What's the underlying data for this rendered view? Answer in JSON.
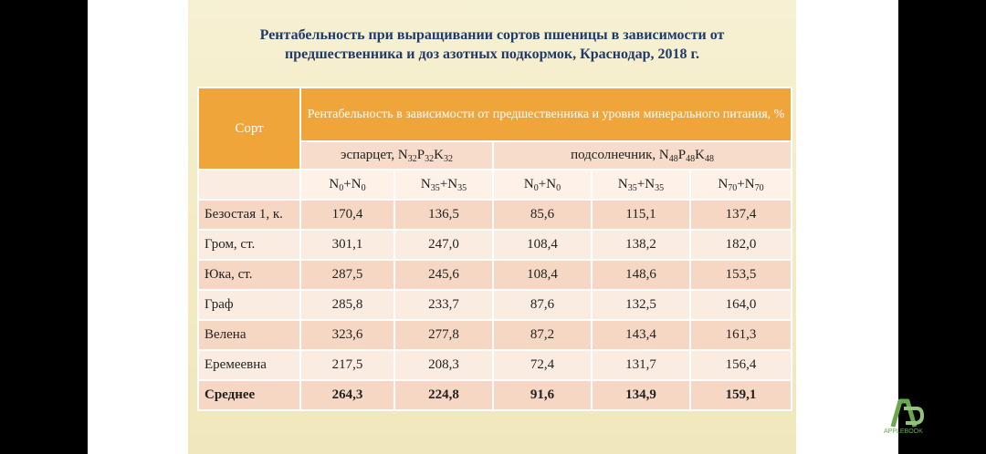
{
  "title": "Рентабельность при выращивании сортов пшеницы в зависимости от предшественника и доз азотных подкормок, Краснодар, 2018 г.",
  "table": {
    "col_sort": "Сорт",
    "col_main": "Рентабельность в зависимости от предшественника и уровня минерального питания, %",
    "groups": [
      {
        "label": "эспарцет, N32P32K32"
      },
      {
        "label": "подсолнечник, N48P48K48"
      }
    ],
    "subcols": [
      "N0+N0",
      "N35+N35",
      "N0+N0",
      "N35+N35",
      "N70+N70"
    ],
    "rows": [
      {
        "name": "Безостая 1, к.",
        "values": [
          "170,4",
          "136,5",
          "85,6",
          "115,1",
          "137,4"
        ]
      },
      {
        "name": "Гром, ст.",
        "values": [
          "301,1",
          "247,0",
          "108,4",
          "138,2",
          "182,0"
        ]
      },
      {
        "name": "Юка, ст.",
        "values": [
          "287,5",
          "245,6",
          "108,4",
          "148,6",
          "153,5"
        ]
      },
      {
        "name": "Граф",
        "values": [
          "285,8",
          "233,7",
          "87,6",
          "132,5",
          "164,0"
        ]
      },
      {
        "name": "Велена",
        "values": [
          "323,6",
          "277,8",
          "87,2",
          "143,4",
          "161,3"
        ]
      },
      {
        "name": "Еремеевна",
        "values": [
          "217,5",
          "208,3",
          "72,4",
          "131,7",
          "156,4"
        ]
      },
      {
        "name": "Среднее",
        "values": [
          "264,3",
          "224,8",
          "91,6",
          "134,9",
          "159,1"
        ]
      }
    ]
  },
  "logo": {
    "text": "APPLEBOOK",
    "color": "#6aa84f"
  }
}
